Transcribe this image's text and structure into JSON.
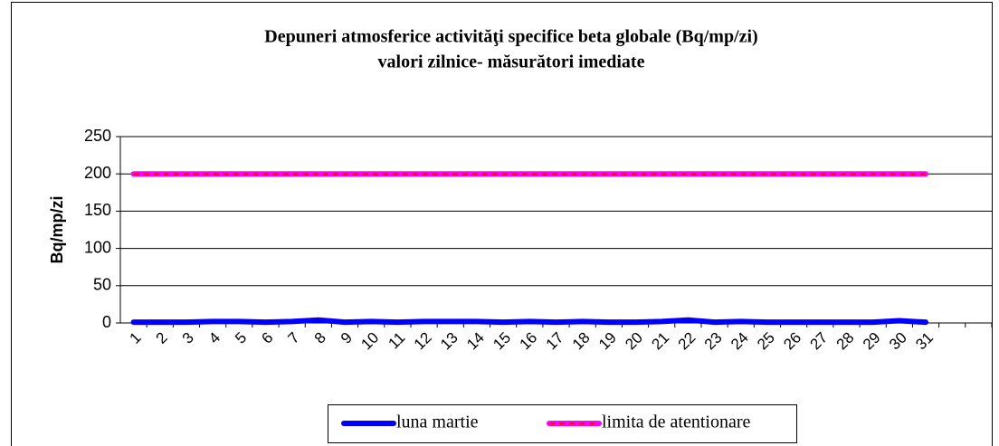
{
  "chart_data": {
    "type": "line",
    "title": "Depuneri atmosferice activităţi specifice beta globale (Bq/mp/zi)",
    "subtitle": "valori zilnice- măsurători imediate",
    "y_label": "Bq/mp/zi",
    "categories": [
      "1",
      "2",
      "3",
      "4",
      "5",
      "6",
      "7",
      "8",
      "9",
      "10",
      "11",
      "12",
      "13",
      "14",
      "15",
      "16",
      "17",
      "18",
      "19",
      "20",
      "21",
      "22",
      "23",
      "24",
      "25",
      "26",
      "27",
      "28",
      "29",
      "30",
      "31",
      null,
      null
    ],
    "series": [
      {
        "name": "luna martie",
        "color": "#0000ff",
        "values": [
          1,
          1,
          1,
          2,
          2,
          1,
          2,
          4,
          1,
          2,
          1,
          2,
          2,
          2,
          1,
          2,
          1,
          2,
          1,
          1,
          2,
          4,
          1,
          2,
          1,
          1,
          1,
          1,
          1,
          3,
          1,
          null,
          null
        ]
      },
      {
        "name": "limita de atentionare",
        "color": "#ff00ff",
        "dash_color": "#ff0000",
        "values": [
          200,
          200,
          200,
          200,
          200,
          200,
          200,
          200,
          200,
          200,
          200,
          200,
          200,
          200,
          200,
          200,
          200,
          200,
          200,
          200,
          200,
          200,
          200,
          200,
          200,
          200,
          200,
          200,
          200,
          200,
          200,
          null,
          null
        ]
      }
    ],
    "ylim": [
      0,
      250
    ],
    "yticks": [
      0,
      50,
      100,
      150,
      200,
      250
    ],
    "grid": true,
    "legend": "bottom"
  }
}
